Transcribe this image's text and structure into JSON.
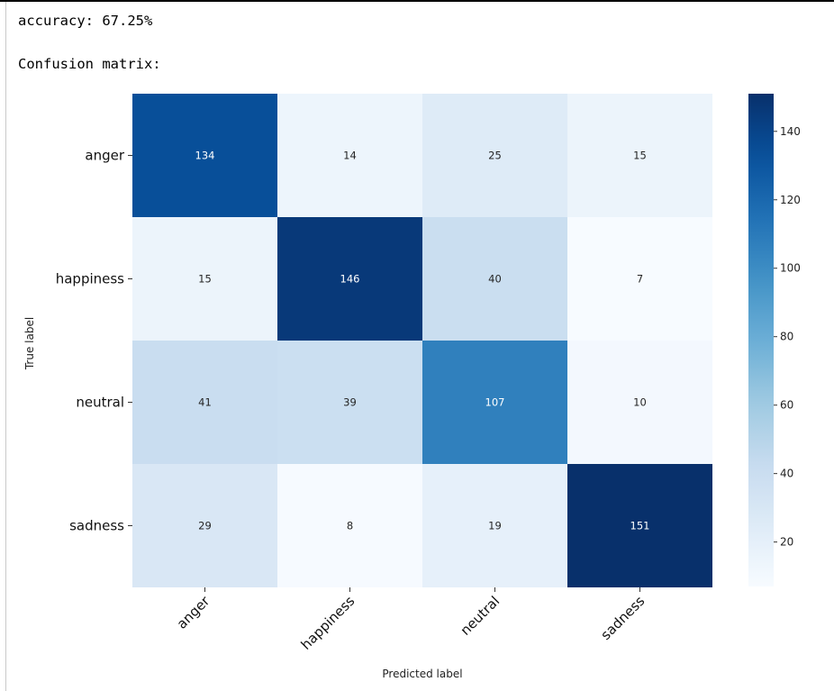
{
  "output": {
    "accuracy_line": "accuracy: 67.25%",
    "confusion_matrix_line": "Confusion matrix:"
  },
  "chart_data": {
    "type": "heatmap",
    "rows": [
      "anger",
      "happiness",
      "neutral",
      "sadness"
    ],
    "columns": [
      "anger",
      "happiness",
      "neutral",
      "sadness"
    ],
    "values": [
      [
        134,
        14,
        25,
        15
      ],
      [
        15,
        146,
        40,
        7
      ],
      [
        41,
        39,
        107,
        10
      ],
      [
        29,
        8,
        19,
        151
      ]
    ],
    "xlabel": "Predicted label",
    "ylabel": "True label",
    "colormap": "Blues",
    "vmin": 7,
    "vmax": 151,
    "colorbar_ticks": [
      20,
      40,
      60,
      80,
      100,
      120,
      140
    ],
    "annotations": true
  }
}
